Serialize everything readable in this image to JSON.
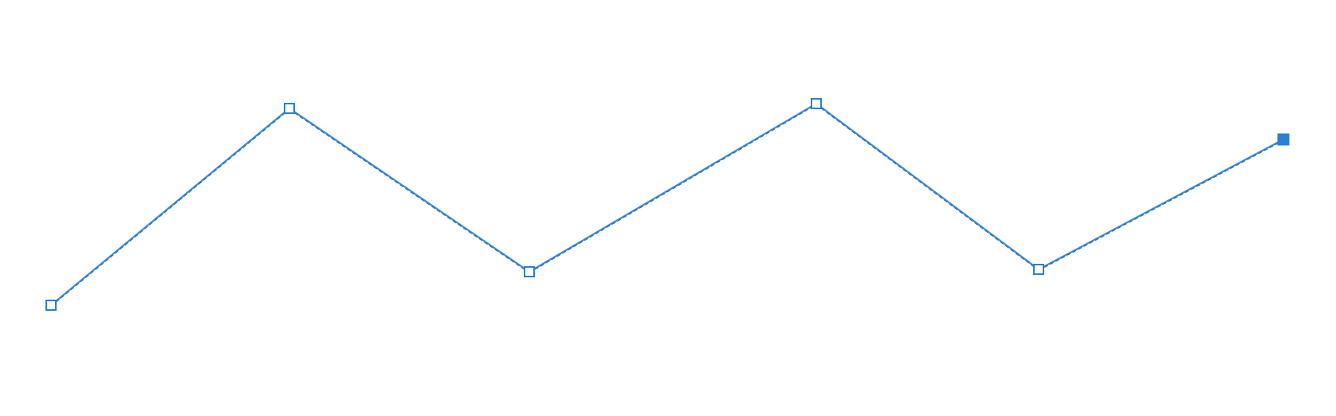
{
  "polyline": {
    "stroke_color": "#2f5d87",
    "highlight_color": "#2b7fd4",
    "handle_color": "#2b7fd4",
    "vertices": [
      {
        "id": "v0",
        "selected": false
      },
      {
        "id": "v1",
        "selected": false
      },
      {
        "id": "v2",
        "selected": false
      },
      {
        "id": "v3",
        "selected": false
      },
      {
        "id": "v4",
        "selected": false
      },
      {
        "id": "v5",
        "selected": true
      }
    ]
  }
}
